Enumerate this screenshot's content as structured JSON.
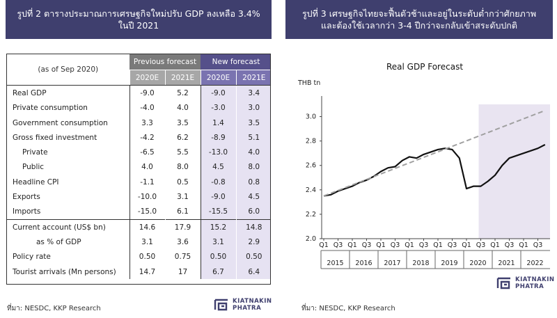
{
  "left": {
    "title_line1": "รูปที่ 2 ตารางประมาณการเศรษฐกิจใหม่ปรับ GDP ลงเหลือ 3.4%",
    "title_line2": "ในปี 2021",
    "as_of": "(as of Sep 2020)",
    "prev_header": "Previous forecast",
    "new_header": "New forecast",
    "years": [
      "2020E",
      "2021E",
      "2020E",
      "2021E"
    ],
    "rows": [
      {
        "label": "Real GDP",
        "indent": 0,
        "values": [
          "-9.0",
          "5.2",
          "-9.0",
          "3.4"
        ]
      },
      {
        "label": "Private consumption",
        "indent": 0,
        "values": [
          "-4.0",
          "4.0",
          "-3.0",
          "3.0"
        ]
      },
      {
        "label": "Government consumption",
        "indent": 0,
        "values": [
          "3.3",
          "3.5",
          "1.4",
          "3.5"
        ]
      },
      {
        "label": "Gross fixed investment",
        "indent": 0,
        "values": [
          "-4.2",
          "6.2",
          "-8.9",
          "5.1"
        ]
      },
      {
        "label": "Private",
        "indent": 1,
        "values": [
          "-6.5",
          "5.5",
          "-13.0",
          "4.0"
        ]
      },
      {
        "label": "Public",
        "indent": 1,
        "values": [
          "4.0",
          "8.0",
          "4.5",
          "8.0"
        ]
      },
      {
        "label": "Headline CPI",
        "indent": 0,
        "values": [
          "-1.1",
          "0.5",
          "-0.8",
          "0.8"
        ]
      },
      {
        "label": "Exports",
        "indent": 0,
        "values": [
          "-10.0",
          "3.1",
          "-9.0",
          "4.5"
        ]
      },
      {
        "label": "Imports",
        "indent": 0,
        "values": [
          "-15.0",
          "6.1",
          "-15.5",
          "6.0"
        ]
      },
      {
        "label": "Current account (US$ bn)",
        "indent": 0,
        "values": [
          "14.6",
          "17.9",
          "15.2",
          "14.8"
        ],
        "sep": true
      },
      {
        "label": "as % of GDP",
        "indent": 2,
        "values": [
          "3.1",
          "3.6",
          "3.1",
          "2.9"
        ]
      },
      {
        "label": "Policy rate",
        "indent": 0,
        "values": [
          "0.50",
          "0.75",
          "0.50",
          "0.50"
        ]
      },
      {
        "label": "Tourist arrivals (Mn persons)",
        "indent": 0,
        "values": [
          "14.7",
          "17",
          "6.7",
          "6.4"
        ]
      }
    ],
    "source": "ที่มา: NESDC, KKP Research"
  },
  "right": {
    "title_line1": "รูปที่ 3 เศรษฐกิจไทยจะฟื้นตัวช้าและอยู่ในระดับต่ำกว่าศักยภาพ",
    "title_line2": "และต้องใช้เวลากว่า 3-4 ปีกว่าจะกลับเข้าสระดับปกติ",
    "source": "ที่มา: NESDC, KKP Research"
  },
  "logo": {
    "line1": "KIATNAKIN",
    "line2": "PHATRA",
    "color": "#3f3f6e"
  },
  "chart_data": {
    "type": "line",
    "title": "Real GDP Forecast",
    "ylabel": "THB tn",
    "ylim": [
      2.0,
      3.1
    ],
    "yticks": [
      "2.0",
      "2.2",
      "2.4",
      "2.6",
      "2.8",
      "3.0"
    ],
    "xlim": [
      0,
      31
    ],
    "x_quarter_labels": [
      "Q1",
      "Q3",
      "Q1",
      "Q3",
      "Q1",
      "Q3",
      "Q1",
      "Q3",
      "Q1",
      "Q3",
      "Q1",
      "Q3",
      "Q1",
      "Q3",
      "Q1",
      "Q3"
    ],
    "x_years": [
      "2015",
      "2016",
      "2017",
      "2018",
      "2019",
      "2020",
      "2021",
      "2022"
    ],
    "shaded_from_x": 22,
    "shade_color": "#e9e4f1",
    "series": [
      {
        "style": "solid",
        "color": "#111111",
        "points": [
          [
            0,
            2.35
          ],
          [
            1,
            2.36
          ],
          [
            2,
            2.39
          ],
          [
            3,
            2.41
          ],
          [
            4,
            2.43
          ],
          [
            5,
            2.46
          ],
          [
            6,
            2.48
          ],
          [
            7,
            2.51
          ],
          [
            8,
            2.55
          ],
          [
            9,
            2.58
          ],
          [
            10,
            2.59
          ],
          [
            11,
            2.64
          ],
          [
            12,
            2.67
          ],
          [
            13,
            2.66
          ],
          [
            14,
            2.69
          ],
          [
            15,
            2.71
          ],
          [
            16,
            2.73
          ],
          [
            17,
            2.74
          ],
          [
            18,
            2.73
          ],
          [
            19,
            2.66
          ],
          [
            20,
            2.41
          ],
          [
            21,
            2.43
          ],
          [
            22,
            2.43
          ],
          [
            23,
            2.47
          ],
          [
            24,
            2.52
          ],
          [
            25,
            2.6
          ],
          [
            26,
            2.66
          ],
          [
            27,
            2.68
          ],
          [
            28,
            2.7
          ],
          [
            29,
            2.72
          ],
          [
            30,
            2.74
          ],
          [
            31,
            2.77
          ]
        ]
      },
      {
        "style": "dashed",
        "color": "#a0a0a0",
        "points": [
          [
            0,
            2.35
          ],
          [
            31,
            3.05
          ]
        ]
      }
    ]
  }
}
